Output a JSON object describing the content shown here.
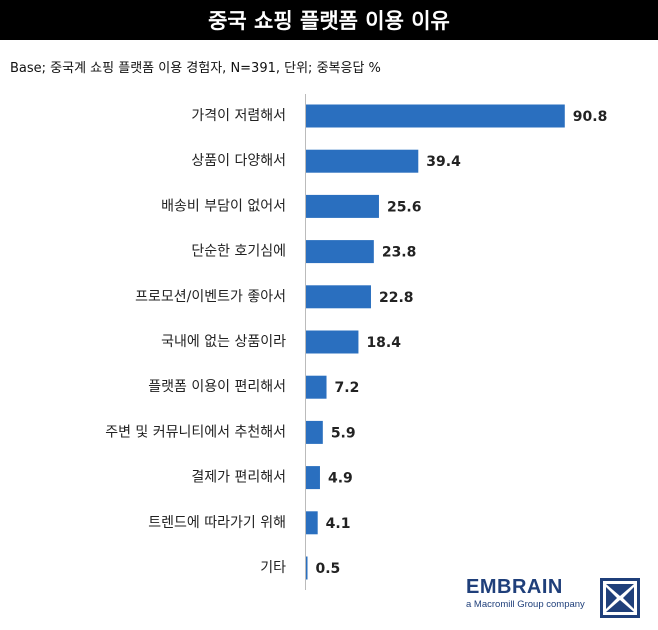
{
  "header": {
    "title": "중국 쇼핑 플랫폼 이용 이유",
    "base_note": "Base; 중국계 쇼핑 플랫폼 이용 경험자, N=391, 단위; 중복응답 %"
  },
  "chart_data": {
    "type": "bar",
    "orientation": "horizontal",
    "categories": [
      "가격이 저렴해서",
      "상품이 다양해서",
      "배송비 부담이 없어서",
      "단순한 호기심에",
      "프로모션/이벤트가 좋아서",
      "국내에 없는 상품이라",
      "플랫폼 이용이 편리해서",
      "주변 및 커뮤니티에서 추천해서",
      "결제가 편리해서",
      "트렌드에 따라가기 위해",
      "기타"
    ],
    "values": [
      90.8,
      39.4,
      25.6,
      23.8,
      22.8,
      18.4,
      7.2,
      5.9,
      4.9,
      4.1,
      0.5
    ],
    "value_labels": [
      "90.8",
      "39.4",
      "25.6",
      "23.8",
      "22.8",
      "18.4",
      "7.2",
      "5.9",
      "4.9",
      "4.1",
      "0.5"
    ],
    "xlim": [
      0,
      100
    ],
    "grid": false,
    "bar_color": "#2a6fbf"
  },
  "logo": {
    "name": "EMBRAIN",
    "tagline": "a Macromill Group company",
    "color": "#1f3f7a",
    "icon": "embrain-mark-icon"
  }
}
